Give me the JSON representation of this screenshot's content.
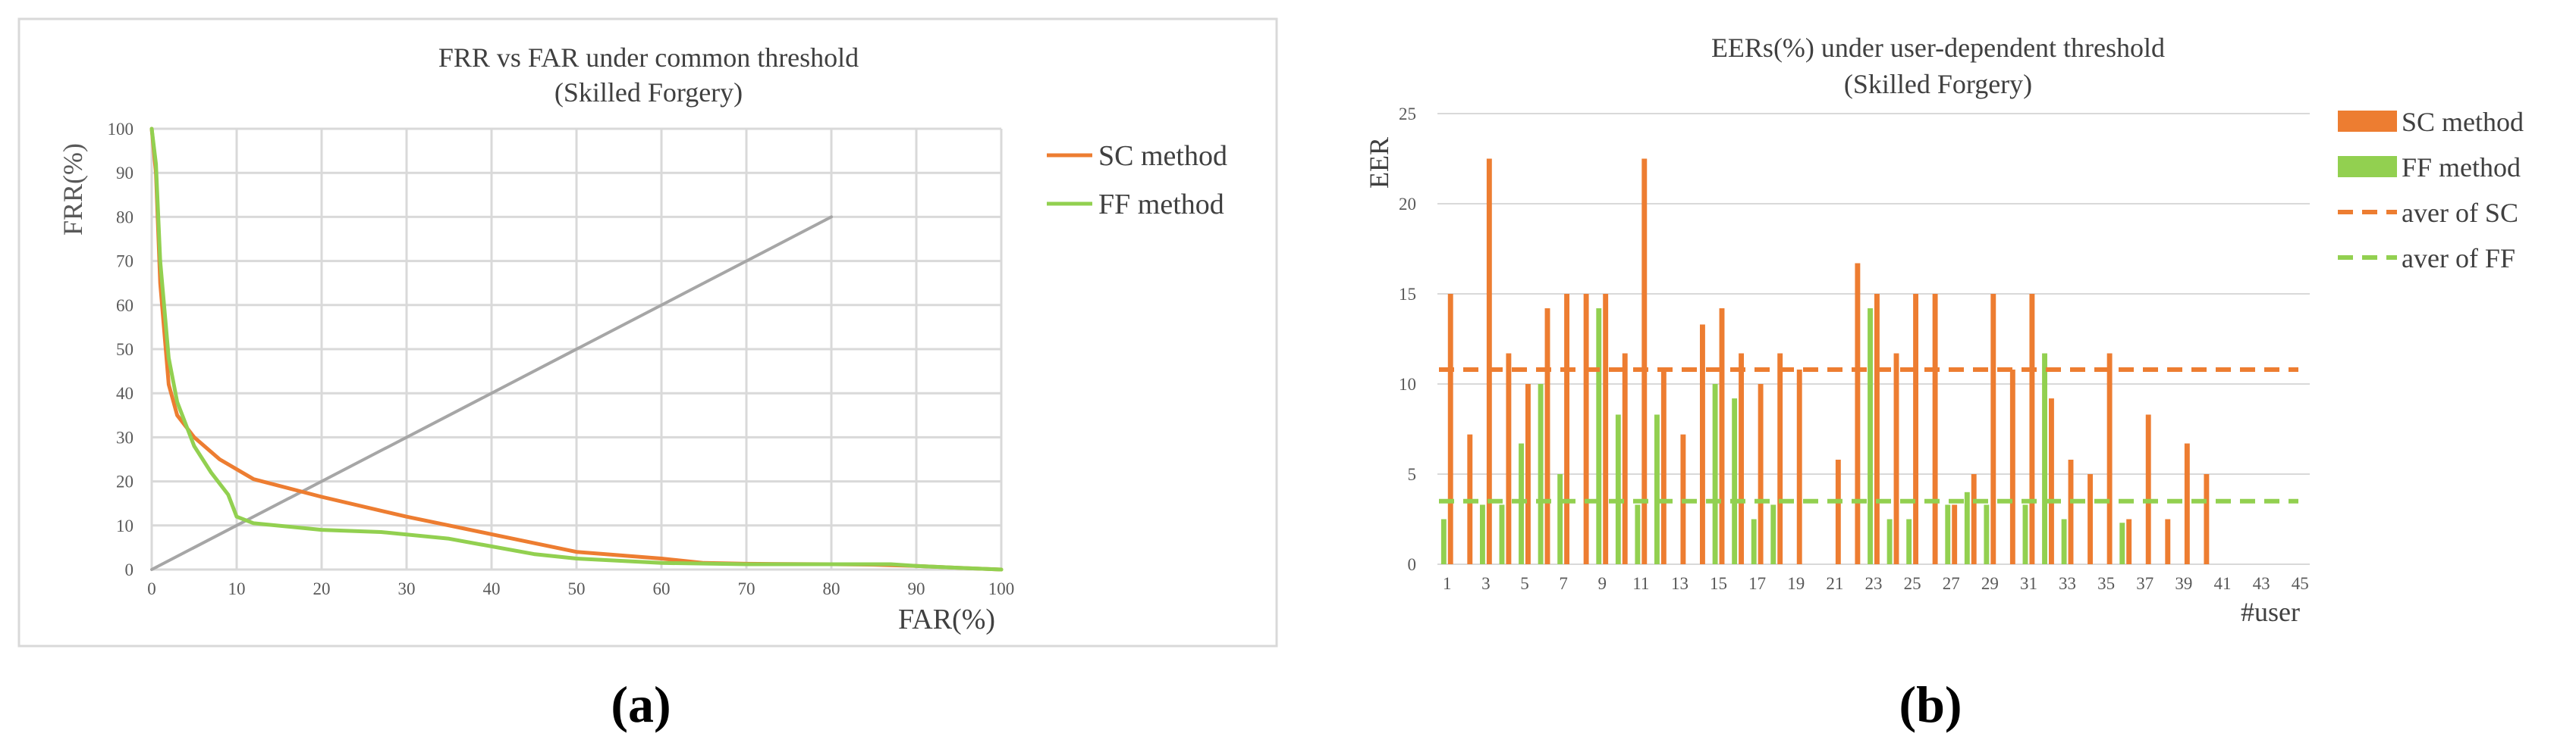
{
  "colors": {
    "sc": "#ED7D31",
    "ff": "#92D050",
    "diagonal": "#A6A6A6",
    "grid": "#D9D9D9",
    "axis_text": "#595959",
    "title_text": "#404040",
    "frame": "#D9D9D9"
  },
  "panel_a": {
    "caption": "(a)",
    "chart_data": {
      "type": "line",
      "title_line1": "FRR vs FAR under common threshold",
      "title_line2": "(Skilled Forgery)",
      "xlabel": "FAR(%)",
      "ylabel": "FRR(%)",
      "xlim": [
        0,
        100
      ],
      "ylim": [
        0,
        100
      ],
      "x_ticks": [
        "0",
        "10",
        "20",
        "30",
        "40",
        "50",
        "60",
        "70",
        "80",
        "90",
        "100"
      ],
      "y_ticks": [
        "0",
        "10",
        "20",
        "30",
        "40",
        "50",
        "60",
        "70",
        "80",
        "90",
        "100"
      ],
      "grid": true,
      "legend": [
        "SC method",
        "FF method"
      ],
      "legend_position": "right",
      "series": [
        {
          "name": "SC method",
          "x": [
            0,
            0.5,
            1,
            2,
            3,
            5,
            8,
            12,
            20,
            30,
            40,
            50,
            60,
            65,
            70,
            80,
            85,
            90,
            95,
            100
          ],
          "y": [
            100,
            90,
            65,
            42,
            35,
            30,
            25,
            20.5,
            16.5,
            12,
            8,
            4,
            2.5,
            1.5,
            1.3,
            1.2,
            1.1,
            0.8,
            0.4,
            0
          ]
        },
        {
          "name": "FF method",
          "x": [
            0,
            0.5,
            1,
            2,
            3,
            5,
            7,
            9,
            10,
            12,
            20,
            27,
            35,
            45,
            50,
            60,
            70,
            80,
            87,
            90,
            95,
            100
          ],
          "y": [
            100,
            92,
            70,
            48,
            38,
            28,
            22,
            17,
            12,
            10.5,
            9,
            8.5,
            7,
            3.5,
            2.5,
            1.5,
            1.2,
            1.2,
            1.2,
            0.8,
            0.4,
            0
          ]
        },
        {
          "name": "diagonal",
          "x": [
            0,
            80
          ],
          "y": [
            0,
            80
          ]
        }
      ]
    }
  },
  "panel_b": {
    "caption": "(b)",
    "chart_data": {
      "type": "bar",
      "title_line1": "EERs(%) under user-dependent threshold",
      "title_line2": "(Skilled Forgery)",
      "xlabel": "#user",
      "ylabel": "EER",
      "xlim": [
        0,
        45
      ],
      "ylim": [
        0,
        25
      ],
      "y_ticks": [
        "0",
        "5",
        "10",
        "15",
        "20",
        "25"
      ],
      "x_ticks": [
        "1",
        "3",
        "5",
        "7",
        "9",
        "11",
        "13",
        "15",
        "17",
        "19",
        "21",
        "23",
        "25",
        "27",
        "29",
        "31",
        "33",
        "35",
        "37",
        "39",
        "41",
        "43",
        "45"
      ],
      "categories": [
        1,
        2,
        3,
        4,
        5,
        6,
        7,
        8,
        9,
        10,
        11,
        12,
        13,
        14,
        15,
        16,
        17,
        18,
        19,
        20,
        21,
        22,
        23,
        24,
        25,
        26,
        27,
        28,
        29,
        30,
        31,
        32,
        33,
        34,
        35,
        36,
        37,
        38,
        39,
        40,
        41,
        42,
        43,
        44,
        45
      ],
      "series": [
        {
          "name": "SC method",
          "values": [
            15,
            7.2,
            22.5,
            11.7,
            10,
            14.2,
            15,
            15,
            15,
            11.7,
            22.5,
            10.8,
            7.2,
            13.3,
            14.2,
            11.7,
            10,
            11.7,
            10.8,
            0,
            5.8,
            16.7,
            15,
            11.7,
            15,
            15,
            3.3,
            5,
            15,
            10.8,
            15,
            9.2,
            5.8,
            5,
            11.7,
            2.5,
            8.3,
            2.5,
            6.7,
            5,
            0,
            0,
            0,
            0,
            0
          ]
        },
        {
          "name": "FF method",
          "values": [
            2.5,
            0,
            3.3,
            3.3,
            6.7,
            10,
            5,
            0,
            14.2,
            8.3,
            3.3,
            8.3,
            0,
            0,
            10,
            9.2,
            2.5,
            3.3,
            0,
            0,
            0,
            0,
            14.2,
            2.5,
            2.5,
            0,
            3.3,
            4,
            3.3,
            0,
            3.3,
            11.7,
            2.5,
            0,
            0,
            2.3,
            0,
            0,
            0,
            0,
            0,
            0,
            0,
            0,
            0
          ]
        }
      ],
      "averages": [
        {
          "name": "aver of SC",
          "value": 10.8
        },
        {
          "name": "aver of FF",
          "value": 3.5
        }
      ],
      "legend": [
        "SC method",
        "FF method",
        "aver of SC",
        "aver of FF"
      ],
      "legend_position": "right"
    }
  }
}
